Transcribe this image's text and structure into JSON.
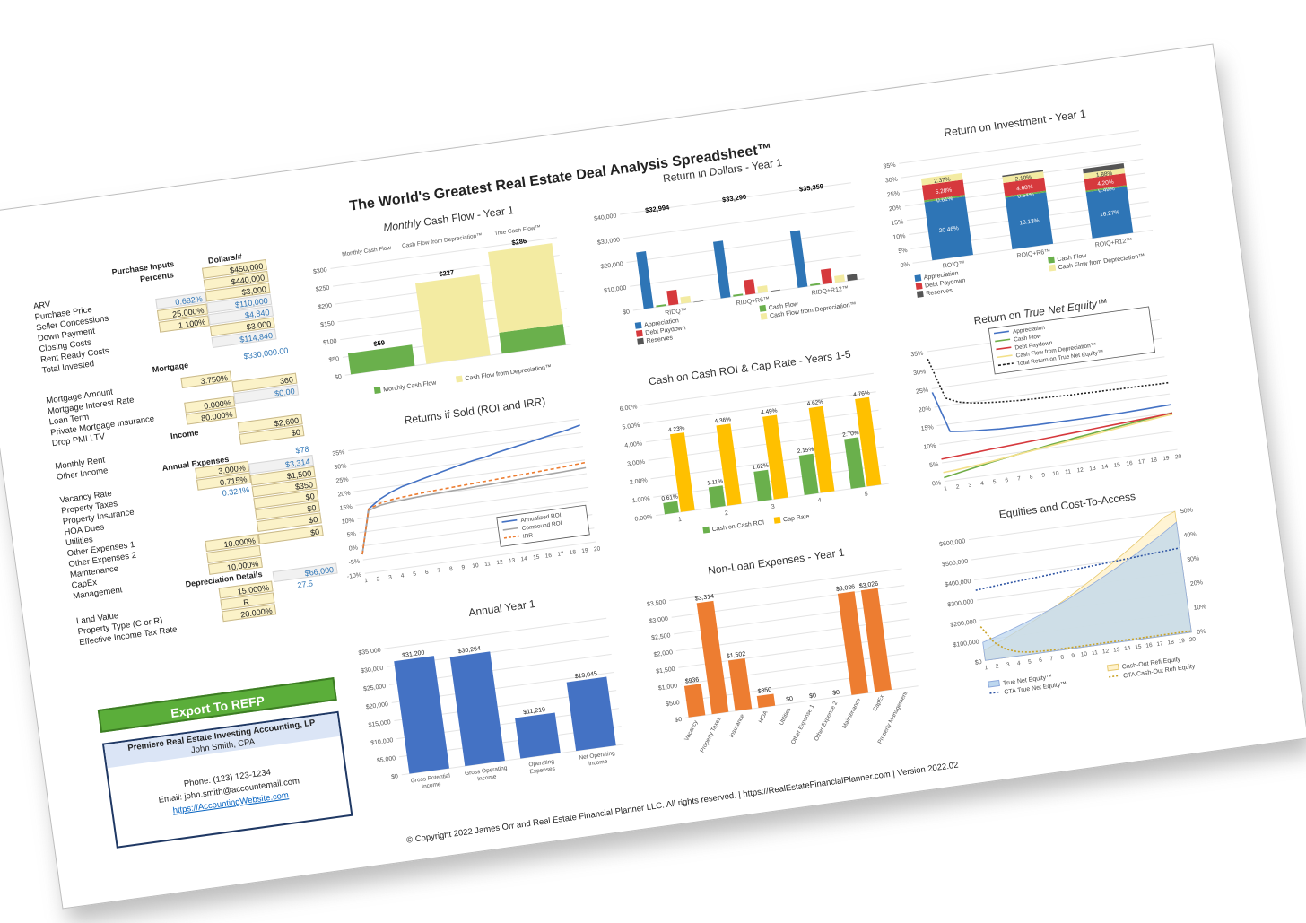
{
  "title": "The World's Greatest Real Estate Deal Analysis Spreadsheet™",
  "inputs": {
    "purchase_header": "Purchase Inputs",
    "percents_header": "Percents",
    "dollars_header": "Dollars/#",
    "arv_label": "ARV",
    "arv_value": "$450,000",
    "purchase_price_label": "Purchase Price",
    "purchase_price_value": "$440,000",
    "seller_concessions_label": "Seller Concessions",
    "seller_concessions_pct": "0.682%",
    "seller_concessions_value": "$3,000",
    "down_payment_label": "Down Payment",
    "down_payment_pct": "25.000%",
    "down_payment_value": "$110,000",
    "closing_costs_label": "Closing Costs",
    "closing_costs_pct": "1.100%",
    "closing_costs_value": "$4,840",
    "rent_ready_label": "Rent Ready Costs",
    "rent_ready_value": "$3,000",
    "total_invested_label": "Total Invested",
    "total_invested_value": "$114,840",
    "mortgage_header": "Mortgage",
    "mortgage_amount_label": "Mortgage Amount",
    "mortgage_amount_value": "$330,000.00",
    "interest_rate_label": "Mortgage Interest Rate",
    "interest_rate_pct": "3.750%",
    "loan_term_label": "Loan Term",
    "loan_term_value": "360",
    "pmi_label": "Private Mortgage Insurance",
    "pmi_pct": "0.000%",
    "pmi_value": "$0.00",
    "drop_pmi_label": "Drop PMI LTV",
    "drop_pmi_pct": "80.000%",
    "income_header": "Income",
    "monthly_rent_label": "Monthly Rent",
    "monthly_rent_value": "$2,600",
    "other_income_label": "Other Income",
    "other_income_value": "$0",
    "expenses_header": "Annual Expenses",
    "vacancy_label": "Vacancy Rate",
    "vacancy_pct": "3.000%",
    "vacancy_value": "$78",
    "property_taxes_label": "Property Taxes",
    "property_taxes_pct": "0.715%",
    "property_taxes_value": "$3,314",
    "insurance_label": "Property Insurance",
    "insurance_pct": "0.324%",
    "insurance_value": "$1,500",
    "hoa_label": "HOA Dues",
    "hoa_value": "$350",
    "utilities_label": "Utilities",
    "utilities_value": "$0",
    "other1_label": "Other Expenses 1",
    "other1_value": "$0",
    "other2_label": "Other Expenses 2",
    "other2_value": "$0",
    "maintenance_label": "Maintenance",
    "maintenance_pct": "10.000%",
    "maintenance_value": "$0",
    "capex_label": "CapEx",
    "management_label": "Management",
    "management_pct": "10.000%",
    "depreciation_header": "Depreciation Details",
    "land_value_label": "Land Value",
    "land_value_pct": "15.000%",
    "land_value_value": "$66,000",
    "property_type_label": "Property Type (C or R)",
    "property_type_value": "R",
    "property_type_years": "27.5",
    "tax_rate_label": "Effective Income Tax Rate",
    "tax_rate_pct": "20.000%"
  },
  "export_button": "Export To REFP",
  "contact": {
    "company": "Premiere Real Estate Investing Accounting, LP",
    "name": "John Smith, CPA",
    "phone": "Phone: (123) 123-1234",
    "email": "Email: john.smith@accountemail.com",
    "website": "https://AccountingWebsite.com"
  },
  "footer": "© Copyright 2022 James Orr and Real Estate Financial Planner LLC. All rights reserved. | https://RealEstateFinancialPlanner.com | Version 2022.02",
  "chart_data": [
    {
      "id": "monthly_cash_flow",
      "type": "bar",
      "title": "Monthly Cash Flow - Year 1",
      "categories": [
        "Monthly Cash Flow",
        "Cash Flow from Depreciation™",
        "True Cash Flow™"
      ],
      "series": [
        {
          "name": "Monthly Cash Flow",
          "values": [
            59,
            0,
            59
          ],
          "color": "#6ab04c"
        },
        {
          "name": "Cash Flow from Depreciation™",
          "values": [
            0,
            227,
            227
          ],
          "color": "#f3eba2"
        }
      ],
      "labels": [
        "$59",
        "$227",
        "$286"
      ],
      "yticks": [
        "$0",
        "$50",
        "$100",
        "$150",
        "$200",
        "$250",
        "$300"
      ],
      "ylim": [
        0,
        300
      ]
    },
    {
      "id": "return_in_dollars",
      "type": "bar",
      "title": "Return in Dollars - Year 1",
      "categories": [
        "RIDQ™",
        "RIDQ+R6™",
        "RIDQ+R12™"
      ],
      "totals": [
        "$32,994",
        "$33,290",
        "$35,359"
      ],
      "series": [
        {
          "name": "Appreciation",
          "values": [
            23500,
            23500,
            23500
          ],
          "color": "#2e75b6"
        },
        {
          "name": "Cash Flow",
          "values": [
            706,
            706,
            706
          ],
          "color": "#6ab04c"
        },
        {
          "name": "Debt Paydown",
          "values": [
            6068,
            6068,
            6068
          ],
          "color": "#d6393d"
        },
        {
          "name": "Cash Flow from Depreciation™",
          "values": [
            2720,
            2720,
            2720
          ],
          "color": "#f3eba2"
        },
        {
          "name": "Reserves",
          "values": [
            0,
            296,
            2365
          ],
          "color": "#555555"
        }
      ],
      "bar_labels": [
        "$23,500",
        "$6,",
        "$2,720",
        "$296",
        "$2,365"
      ],
      "yticks": [
        "$0",
        "$10,000",
        "$20,000",
        "$30,000",
        "$40,000"
      ],
      "ylim": [
        0,
        40000
      ]
    },
    {
      "id": "roi_year1",
      "type": "bar",
      "title": "Return on Investment - Year 1",
      "categories": [
        "ROIQ™",
        "ROIQ+R6™",
        "ROIQ+R12™"
      ],
      "series": [
        {
          "name": "Appreciation",
          "values": [
            20.46,
            18.13,
            16.27
          ],
          "color": "#2e75b6"
        },
        {
          "name": "Cash Flow",
          "values": [
            0.61,
            0.54,
            0.49
          ],
          "color": "#6ab04c"
        },
        {
          "name": "Debt Paydown",
          "values": [
            5.28,
            4.68,
            4.2
          ],
          "color": "#d6393d"
        },
        {
          "name": "Cash Flow from Depreciation™",
          "values": [
            2.37,
            2.1,
            1.88
          ],
          "color": "#f3eba2"
        },
        {
          "name": "Reserves",
          "values": [
            0,
            0.5,
            1.6
          ],
          "color": "#555555"
        }
      ],
      "labels": [
        [
          "20.46%",
          "0.61%",
          "5.28%",
          "2.37%"
        ],
        [
          "18.13%",
          "0.54%",
          "4.68%",
          "2.10%"
        ],
        [
          "16.27%",
          "0.49%",
          "4.20%",
          "1.88%"
        ]
      ],
      "yticks": [
        "0%",
        "5%",
        "10%",
        "15%",
        "20%",
        "25%",
        "30%",
        "35%"
      ],
      "ylim": [
        0,
        35
      ]
    },
    {
      "id": "returns_if_sold",
      "type": "line",
      "title": "Returns if Sold (ROI and IRR)",
      "x": [
        1,
        2,
        3,
        4,
        5,
        6,
        7,
        8,
        9,
        10,
        11,
        12,
        13,
        14,
        15,
        16,
        17,
        18,
        19,
        20
      ],
      "series": [
        {
          "name": "Annualized ROI",
          "values": [
            -3,
            13,
            16,
            18,
            19.5,
            20.5,
            21.5,
            22.5,
            23.5,
            24.5,
            25.3,
            26,
            27,
            27.8,
            28.6,
            29.4,
            30.2,
            31,
            31.8,
            32.8
          ],
          "color": "#4472c4"
        },
        {
          "name": "Compound ROI",
          "values": [
            -3,
            12.5,
            13.8,
            14.3,
            14.6,
            14.9,
            15.1,
            15.3,
            15.5,
            15.6,
            15.8,
            15.9,
            16.1,
            16.2,
            16.4,
            16.5,
            16.7,
            16.8,
            17,
            17.2
          ],
          "color": "#a5a5a5"
        },
        {
          "name": "IRR",
          "values": [
            -3,
            13,
            14.5,
            15.3,
            15.7,
            16,
            16.3,
            16.5,
            16.7,
            16.9,
            17.1,
            17.3,
            17.5,
            17.7,
            17.9,
            18.1,
            18.3,
            18.5,
            18.8,
            19.1
          ],
          "color": "#ed7d31"
        }
      ],
      "yticks": [
        "-10%",
        "-5%",
        "0%",
        "5%",
        "10%",
        "15%",
        "20%",
        "25%",
        "30%",
        "35%"
      ],
      "ylim": [
        -10,
        35
      ]
    },
    {
      "id": "coc_cap_rate",
      "type": "bar",
      "title": "Cash on Cash ROI & Cap Rate - Years 1-5",
      "categories": [
        "1",
        "2",
        "3",
        "4",
        "5"
      ],
      "series": [
        {
          "name": "Cash on Cash ROI",
          "values": [
            0.61,
            1.11,
            1.62,
            2.15,
            2.7
          ],
          "color": "#6ab04c"
        },
        {
          "name": "Cap Rate",
          "values": [
            4.23,
            4.36,
            4.49,
            4.62,
            4.76
          ],
          "color": "#ffc000"
        }
      ],
      "labels_green": [
        "0.61%",
        "1.11%",
        "1.62%",
        "2.15%",
        "2.70%"
      ],
      "labels_yellow": [
        "4.23%",
        "4.36%",
        "4.49%",
        "4.62%",
        "4.76%"
      ],
      "yticks": [
        "0.00%",
        "1.00%",
        "2.00%",
        "3.00%",
        "4.00%",
        "5.00%",
        "6.00%"
      ],
      "ylim": [
        0,
        6
      ]
    },
    {
      "id": "return_true_net_equity",
      "type": "line",
      "title": "Return on True Net Equity™",
      "x": [
        1,
        2,
        3,
        4,
        5,
        6,
        7,
        8,
        9,
        10,
        11,
        12,
        13,
        14,
        15,
        16,
        17,
        18,
        19,
        20
      ],
      "series": [
        {
          "name": "Appreciation",
          "values": [
            24,
            13,
            12.6,
            12.3,
            12.1,
            11.9,
            11.8,
            11.7,
            11.6,
            11.6,
            11.6,
            11.6,
            11.6,
            11.6,
            11.7,
            11.7,
            11.8,
            11.9,
            12,
            12.1
          ],
          "color": "#4472c4"
        },
        {
          "name": "Cash Flow",
          "values": [
            1,
            1.6,
            2.2,
            2.8,
            3.4,
            3.9,
            4.4,
            4.9,
            5.4,
            5.9,
            6.3,
            6.8,
            7.2,
            7.6,
            8,
            8.4,
            8.8,
            9.2,
            9.5,
            9.9
          ],
          "color": "#70ad47"
        },
        {
          "name": "Debt Paydown",
          "values": [
            6,
            6.2,
            6.4,
            6.6,
            6.8,
            7,
            7.2,
            7.4,
            7.6,
            7.8,
            8,
            8.2,
            8.4,
            8.6,
            8.8,
            9,
            9.2,
            9.4,
            9.6,
            9.8
          ],
          "color": "#d6393d"
        },
        {
          "name": "Cash Flow from Depreciation™",
          "values": [
            2.4,
            2.6,
            2.9,
            3.2,
            3.6,
            4,
            4.4,
            4.8,
            5.2,
            5.6,
            6,
            6.4,
            6.8,
            7.2,
            7.6,
            8,
            8.4,
            8.8,
            9.2,
            9.5
          ],
          "color": "#f3e08a"
        },
        {
          "name": "Total Return on True Net Equity™",
          "values": [
            33,
            22,
            20.5,
            19.8,
            19.4,
            19.1,
            18.9,
            18.7,
            18.6,
            18.5,
            18.4,
            18.3,
            18.3,
            18.2,
            18.2,
            18.1,
            18.1,
            18.1,
            18,
            18
          ],
          "color": "#222222"
        }
      ],
      "yticks": [
        "0%",
        "5%",
        "10%",
        "15%",
        "20%",
        "25%",
        "30%",
        "35%"
      ],
      "ylim": [
        0,
        35
      ]
    },
    {
      "id": "annual_year1",
      "type": "bar",
      "title": "Annual Year 1",
      "categories": [
        "Gross Potential Income",
        "Gross Operating Income",
        "Operating Expenses",
        "Net Operating Income"
      ],
      "values": [
        31200,
        30264,
        11219,
        19045
      ],
      "labels": [
        "$31,200",
        "$30,264",
        "$11,219",
        "$19,045"
      ],
      "yticks": [
        "$0",
        "$5,000",
        "$10,000",
        "$15,000",
        "$20,000",
        "$25,000",
        "$30,000",
        "$35,000"
      ],
      "ylim": [
        0,
        35000
      ]
    },
    {
      "id": "non_loan_expenses",
      "type": "bar",
      "title": "Non-Loan Expenses - Year 1",
      "categories": [
        "Vacancy",
        "Property Taxes",
        "Insurance",
        "HOA",
        "Utilities",
        "Other Expense 1",
        "Other Expense 2",
        "Maintenance",
        "CapEx",
        "Property Management"
      ],
      "values": [
        936,
        3314,
        1502,
        350,
        0,
        0,
        0,
        3026,
        3026,
        0
      ],
      "labels": [
        "$936",
        "$3,314",
        "$1,502",
        "$350",
        "$0",
        "$0",
        "$0",
        "$3,026",
        "$3,026",
        ""
      ],
      "yticks": [
        "$0",
        "$500",
        "$1,000",
        "$1,500",
        "$2,000",
        "$2,500",
        "$3,000",
        "$3,500"
      ],
      "ylim": [
        0,
        3500
      ]
    },
    {
      "id": "equities_cta",
      "type": "area",
      "title": "Equities and Cost-To-Access",
      "x": [
        1,
        2,
        3,
        4,
        5,
        6,
        7,
        8,
        9,
        10,
        11,
        12,
        13,
        14,
        15,
        16,
        17,
        18,
        19,
        20
      ],
      "series": [
        {
          "name": "True Net Equity™",
          "values": [
            90000,
            105000,
            121000,
            138000,
            156000,
            175000,
            195000,
            216000,
            238000,
            261000,
            285000,
            310000,
            336000,
            363000,
            391000,
            420000,
            450000,
            481000,
            513000,
            546000
          ],
          "color": "#bdd7ee"
        },
        {
          "name": "Cash-Out Refi Equity",
          "values": [
            50000,
            70000,
            92000,
            115000,
            139000,
            164000,
            190000,
            217000,
            245000,
            274000,
            304000,
            335000,
            367000,
            400000,
            434000,
            469000,
            505000,
            542000,
            580000,
            620000
          ],
          "color": "#fff2cc"
        },
        {
          "name": "CTA True Net Equity™",
          "values": [
            29,
            29.4,
            29.8,
            30.1,
            30.4,
            30.7,
            31,
            31.3,
            31.6,
            31.9,
            32.2,
            32.5,
            32.8,
            33.1,
            33.4,
            33.7,
            34,
            34.3,
            34.6,
            34.9
          ],
          "color": "#2f55a4"
        },
        {
          "name": "CTA Cash-Out Refi Equity",
          "values": [
            14,
            7,
            3.5,
            1.8,
            1,
            0.7,
            0.5,
            0.5,
            0.5,
            0.5,
            0.5,
            0.5,
            0.5,
            0.5,
            0.5,
            0.5,
            0.5,
            0.5,
            0.5,
            0.5
          ],
          "color": "#c9a227"
        }
      ],
      "yticks_left": [
        "$0",
        "$100,000",
        "$200,000",
        "$300,000",
        "$400,000",
        "$500,000",
        "$600,000"
      ],
      "yticks_right": [
        "0%",
        "10%",
        "20%",
        "30%",
        "40%",
        "50%"
      ]
    }
  ]
}
